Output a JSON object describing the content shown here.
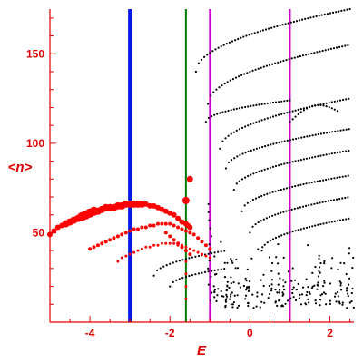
{
  "chart_data": {
    "type": "scatter",
    "title": "",
    "xlabel": "E",
    "ylabel": "<n>",
    "xlim": [
      -5,
      2.6
    ],
    "ylim": [
      0,
      175
    ],
    "grid": false,
    "axis_color": "#e00000",
    "xticks": [
      {
        "value": -4,
        "label": "-4"
      },
      {
        "value": -2,
        "label": "-2"
      },
      {
        "value": 0,
        "label": "0"
      },
      {
        "value": 2,
        "label": "2"
      }
    ],
    "yticks": [
      {
        "value": 50,
        "label": "50"
      },
      {
        "value": 100,
        "label": "100"
      },
      {
        "value": 150,
        "label": "150"
      }
    ],
    "vertical_lines": [
      {
        "x": -3.0,
        "color": "#0018e8",
        "width": "thick"
      },
      {
        "x": -1.6,
        "color": "#007a00",
        "width": "medium"
      },
      {
        "x": -1.0,
        "color": "#cc00cc",
        "width": "medium"
      },
      {
        "x": 1.0,
        "color": "#cc00cc",
        "width": "medium"
      }
    ],
    "red_series": {
      "color": "#ff0000",
      "points": [
        [
          -5.0,
          49,
          3
        ],
        [
          -4.9,
          51,
          3
        ],
        [
          -4.8,
          53,
          3
        ],
        [
          -4.7,
          54,
          3
        ],
        [
          -4.6,
          55,
          4
        ],
        [
          -4.5,
          56,
          4
        ],
        [
          -4.4,
          57,
          4
        ],
        [
          -4.3,
          58,
          4
        ],
        [
          -4.2,
          59,
          5
        ],
        [
          -4.1,
          60,
          5
        ],
        [
          -4.0,
          61,
          5
        ],
        [
          -3.9,
          62,
          5
        ],
        [
          -3.8,
          62,
          4
        ],
        [
          -3.7,
          63,
          4
        ],
        [
          -3.6,
          64,
          4
        ],
        [
          -3.5,
          64,
          4
        ],
        [
          -3.4,
          64,
          4
        ],
        [
          -3.3,
          65,
          4
        ],
        [
          -3.2,
          65,
          4
        ],
        [
          -3.1,
          66,
          4
        ],
        [
          -3.0,
          66,
          4
        ],
        [
          -2.9,
          66,
          4
        ],
        [
          -2.8,
          66,
          4
        ],
        [
          -2.7,
          66,
          4
        ],
        [
          -2.6,
          66,
          3
        ],
        [
          -2.5,
          65,
          3
        ],
        [
          -2.4,
          65,
          3
        ],
        [
          -2.3,
          64,
          3
        ],
        [
          -2.2,
          63,
          3
        ],
        [
          -2.1,
          62,
          3
        ],
        [
          -2.0,
          61,
          3
        ],
        [
          -1.9,
          60,
          3
        ],
        [
          -1.8,
          58,
          3
        ],
        [
          -1.7,
          56,
          3
        ],
        [
          -1.6,
          55,
          3
        ],
        [
          -1.55,
          54,
          3
        ],
        [
          -1.5,
          53,
          3
        ],
        [
          -4.0,
          41,
          2
        ],
        [
          -3.9,
          42,
          2
        ],
        [
          -3.8,
          43,
          2
        ],
        [
          -3.7,
          44,
          2
        ],
        [
          -3.6,
          45,
          2
        ],
        [
          -3.5,
          46,
          2
        ],
        [
          -3.4,
          47,
          2
        ],
        [
          -3.3,
          48,
          2
        ],
        [
          -3.2,
          49,
          2
        ],
        [
          -3.1,
          50,
          2
        ],
        [
          -3.0,
          51,
          2
        ],
        [
          -2.9,
          52,
          2
        ],
        [
          -2.8,
          52,
          2
        ],
        [
          -2.7,
          53,
          2
        ],
        [
          -2.6,
          53,
          2
        ],
        [
          -2.5,
          54,
          2
        ],
        [
          -2.4,
          54,
          2
        ],
        [
          -2.3,
          55,
          2
        ],
        [
          -2.2,
          55,
          2
        ],
        [
          -2.1,
          55,
          2
        ],
        [
          -2.0,
          55,
          2
        ],
        [
          -1.9,
          54,
          2
        ],
        [
          -1.8,
          53,
          2
        ],
        [
          -1.7,
          52,
          2
        ],
        [
          -1.6,
          51,
          2
        ],
        [
          -1.5,
          50,
          2
        ],
        [
          -1.4,
          49,
          2
        ],
        [
          -1.3,
          47,
          2
        ],
        [
          -1.2,
          45,
          2
        ],
        [
          -1.1,
          43,
          2
        ],
        [
          -1.0,
          41,
          2
        ],
        [
          -3.3,
          34,
          1.5
        ],
        [
          -3.2,
          36,
          1.5
        ],
        [
          -3.1,
          37,
          1.5
        ],
        [
          -3.0,
          38,
          1.5
        ],
        [
          -2.9,
          39,
          1.5
        ],
        [
          -2.8,
          40,
          1.5
        ],
        [
          -2.7,
          41,
          1.5
        ],
        [
          -2.6,
          42,
          1.5
        ],
        [
          -2.5,
          42,
          1.5
        ],
        [
          -2.4,
          43,
          1.5
        ],
        [
          -2.3,
          43,
          1.5
        ],
        [
          -2.2,
          44,
          1.5
        ],
        [
          -2.1,
          44,
          1.5
        ],
        [
          -2.0,
          44,
          1.5
        ],
        [
          -1.9,
          44,
          1.5
        ],
        [
          -1.8,
          43,
          1.5
        ],
        [
          -1.7,
          43,
          1.5
        ],
        [
          -1.6,
          42,
          1.5
        ],
        [
          -1.5,
          41,
          1.5
        ],
        [
          -1.4,
          40,
          1.5
        ],
        [
          -1.3,
          39,
          1.5
        ],
        [
          -1.2,
          38,
          1.5
        ],
        [
          -1.1,
          37,
          1.5
        ],
        [
          -1.0,
          36,
          1.5
        ],
        [
          -2.1,
          50,
          2
        ],
        [
          -2.0,
          48,
          2
        ],
        [
          -1.9,
          46,
          2
        ],
        [
          -1.8,
          44,
          2
        ],
        [
          -1.7,
          42,
          2
        ],
        [
          -1.6,
          40,
          2
        ],
        [
          -1.5,
          38,
          2
        ],
        [
          -1.6,
          34,
          1.5
        ],
        [
          -1.6,
          27,
          1.5
        ],
        [
          -1.6,
          20,
          1.5
        ],
        [
          -1.6,
          13,
          1.5
        ],
        [
          -1.6,
          68,
          4
        ],
        [
          -1.5,
          80,
          3.5
        ]
      ]
    },
    "black_series": {
      "color": "#000000",
      "points": []
    }
  }
}
